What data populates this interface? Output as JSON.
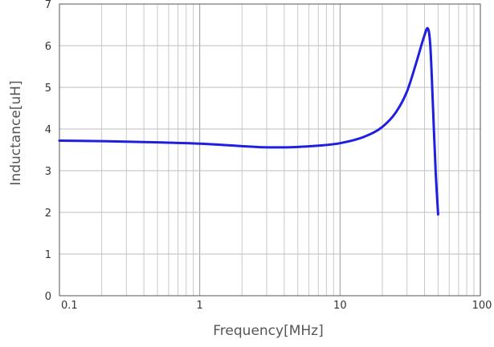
{
  "chart_data": {
    "type": "line",
    "title": "",
    "xlabel": "Frequency[MHz]",
    "ylabel": "Inductance[uH]",
    "x_scale": "log",
    "xlim": [
      0.1,
      100
    ],
    "ylim": [
      0,
      7
    ],
    "grid": true,
    "legend": "none",
    "x_tick_values": [
      0.1,
      1,
      10,
      100
    ],
    "x_tick_labels": [
      "0.1",
      "1",
      "10",
      "100"
    ],
    "y_tick_values": [
      0,
      1,
      2,
      3,
      4,
      5,
      6,
      7
    ],
    "y_tick_labels": [
      "0",
      "1",
      "2",
      "3",
      "4",
      "5",
      "6",
      "7"
    ],
    "series": [
      {
        "color": "#1f1fe0",
        "x": [
          0.1,
          0.2,
          0.5,
          1,
          2,
          3,
          4,
          5,
          7,
          10,
          15,
          20,
          25,
          30,
          35,
          40,
          42,
          44,
          46,
          48,
          50
        ],
        "y": [
          3.72,
          3.71,
          3.68,
          3.65,
          3.59,
          3.56,
          3.56,
          3.57,
          3.6,
          3.66,
          3.82,
          4.05,
          4.4,
          4.9,
          5.6,
          6.25,
          6.42,
          6.0,
          4.5,
          3.0,
          1.95
        ]
      }
    ]
  }
}
